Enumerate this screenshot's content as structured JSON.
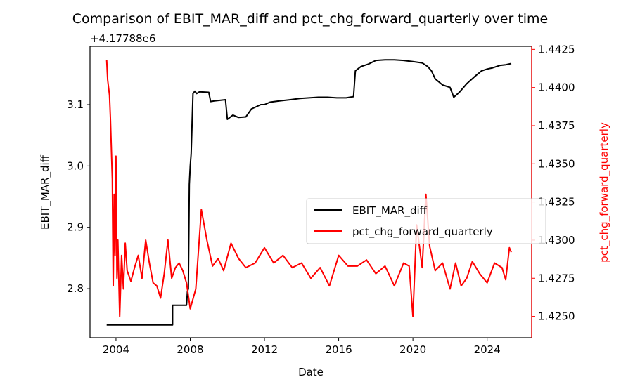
{
  "chart_data": {
    "type": "line",
    "title": "Comparison of EBIT_MAR_diff and pct_chg_forward_quarterly over time",
    "xlabel": "Date",
    "x_ticks": [
      "2004",
      "2008",
      "2012",
      "2016",
      "2020",
      "2024"
    ],
    "xlim": [
      2002.6,
      2026.4
    ],
    "left_axis": {
      "label": "EBIT_MAR_diff",
      "offset_text": "+4.17788e6",
      "ticks": [
        "2.8",
        "2.9",
        "3.0",
        "3.1"
      ],
      "ylim": [
        2.72,
        3.195
      ],
      "color": "#000000"
    },
    "right_axis": {
      "label": "pct_chg_forward_quarterly",
      "ticks": [
        "1.4250",
        "1.4275",
        "1.4300",
        "1.4325",
        "1.4350",
        "1.4375",
        "1.4400",
        "1.4425"
      ],
      "ylim": [
        1.4236,
        1.4427
      ],
      "color": "#ff0000"
    },
    "legend": {
      "placement": "center-right",
      "entries": [
        "EBIT_MAR_diff",
        "pct_chg_forward_quarterly"
      ]
    },
    "grid": false,
    "series": [
      {
        "name": "EBIT_MAR_diff",
        "axis": "left",
        "color": "#000000",
        "x": [
          2003.5,
          2007.0,
          2007.05,
          2007.05,
          2007.8,
          2007.85,
          2007.9,
          2007.95,
          2008.0,
          2008.05,
          2008.15,
          2008.25,
          2008.35,
          2008.5,
          2009.0,
          2009.1,
          2009.3,
          2009.6,
          2009.9,
          2010.0,
          2010.3,
          2010.6,
          2011.0,
          2011.3,
          2011.8,
          2012.0,
          2012.3,
          2012.8,
          2013.4,
          2013.9,
          2014.4,
          2014.9,
          2015.4,
          2015.9,
          2016.4,
          2016.8,
          2016.85,
          2016.9,
          2017.2,
          2017.6,
          2018.0,
          2018.5,
          2019.0,
          2019.5,
          2020.0,
          2020.5,
          2020.8,
          2021.0,
          2021.2,
          2021.6,
          2022.0,
          2022.2,
          2022.5,
          2022.9,
          2023.3,
          2023.7,
          2024.0,
          2024.3,
          2024.7,
          2025.0,
          2025.3
        ],
        "values": [
          2.741,
          2.741,
          2.741,
          2.773,
          2.773,
          2.795,
          2.8,
          2.97,
          3.0,
          3.02,
          3.118,
          3.122,
          3.118,
          3.121,
          3.12,
          3.105,
          3.106,
          3.107,
          3.108,
          3.076,
          3.083,
          3.079,
          3.08,
          3.093,
          3.1,
          3.1,
          3.104,
          3.106,
          3.108,
          3.11,
          3.111,
          3.112,
          3.112,
          3.111,
          3.111,
          3.113,
          3.134,
          3.155,
          3.162,
          3.166,
          3.172,
          3.173,
          3.173,
          3.172,
          3.17,
          3.168,
          3.162,
          3.155,
          3.142,
          3.132,
          3.128,
          3.112,
          3.12,
          3.134,
          3.145,
          3.155,
          3.158,
          3.16,
          3.164,
          3.165,
          3.167
        ]
      },
      {
        "name": "pct_chg_forward_quarterly",
        "axis": "right",
        "color": "#ff0000",
        "x": [
          2003.5,
          2003.55,
          2003.6,
          2003.65,
          2003.7,
          2003.8,
          2003.85,
          2003.9,
          2003.95,
          2004.0,
          2004.05,
          2004.1,
          2004.2,
          2004.3,
          2004.4,
          2004.5,
          2004.6,
          2004.8,
          2005.0,
          2005.2,
          2005.4,
          2005.6,
          2005.8,
          2006.0,
          2006.2,
          2006.4,
          2006.6,
          2006.8,
          2007.0,
          2007.2,
          2007.4,
          2007.6,
          2007.8,
          2008.0,
          2008.3,
          2008.6,
          2008.9,
          2009.2,
          2009.5,
          2009.8,
          2010.2,
          2010.6,
          2011.0,
          2011.5,
          2012.0,
          2012.5,
          2013.0,
          2013.5,
          2014.0,
          2014.5,
          2015.0,
          2015.5,
          2016.0,
          2016.5,
          2017.0,
          2017.5,
          2018.0,
          2018.5,
          2019.0,
          2019.5,
          2019.8,
          2020.0,
          2020.2,
          2020.5,
          2020.7,
          2020.9,
          2021.2,
          2021.6,
          2022.0,
          2022.3,
          2022.6,
          2022.9,
          2023.2,
          2023.6,
          2024.0,
          2024.4,
          2024.8,
          2025.0,
          2025.2,
          2025.3
        ],
        "values": [
          1.4418,
          1.4405,
          1.44,
          1.4395,
          1.438,
          1.434,
          1.427,
          1.433,
          1.429,
          1.4355,
          1.4275,
          1.43,
          1.425,
          1.429,
          1.4268,
          1.4298,
          1.428,
          1.4273,
          1.4282,
          1.429,
          1.4275,
          1.43,
          1.4285,
          1.4272,
          1.427,
          1.4262,
          1.4278,
          1.43,
          1.4275,
          1.4282,
          1.4285,
          1.428,
          1.4272,
          1.4255,
          1.4268,
          1.432,
          1.43,
          1.4283,
          1.4288,
          1.428,
          1.4298,
          1.4288,
          1.4282,
          1.4285,
          1.4295,
          1.4285,
          1.429,
          1.4282,
          1.4285,
          1.4275,
          1.4282,
          1.427,
          1.429,
          1.4283,
          1.4283,
          1.4287,
          1.4278,
          1.4283,
          1.427,
          1.4285,
          1.4283,
          1.425,
          1.431,
          1.4282,
          1.433,
          1.4296,
          1.428,
          1.4285,
          1.4268,
          1.4285,
          1.427,
          1.4275,
          1.4286,
          1.4278,
          1.4272,
          1.4285,
          1.4282,
          1.4274,
          1.4295,
          1.4292
        ]
      }
    ]
  }
}
